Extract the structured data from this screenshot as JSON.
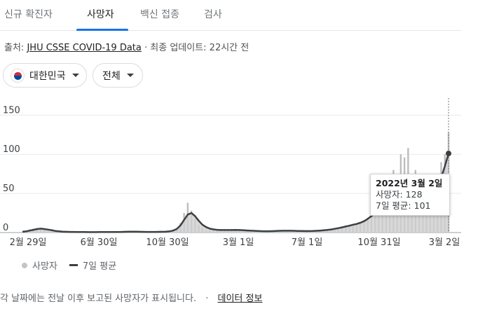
{
  "tabs": [
    {
      "label": "신규 확진자"
    },
    {
      "label": "사망자"
    },
    {
      "label": "백신 접종"
    },
    {
      "label": "검사"
    }
  ],
  "source": {
    "prefix": "출처:",
    "link": "JHU CSSE COVID-19 Data",
    "updated": "· 최종 업데이트: 22시간 전"
  },
  "filters": {
    "country": "대한민국",
    "region": "전체"
  },
  "tooltip": {
    "date": "2022년 3월 2일",
    "deaths": "사망자: 128",
    "avg": "7일 평균: 101"
  },
  "legend": {
    "bars": "사망자",
    "line": "7일 평균"
  },
  "footer": {
    "note": "각 날짜에는 전날 이후 보고된 사망자가 표시됩니다.",
    "sep": "·",
    "link": "데이터 정보"
  },
  "colors": {
    "accent": "#1a73e8",
    "bars": "#bdbdbd",
    "line": "#3c4043"
  },
  "chart_data": {
    "type": "bar",
    "title": "",
    "xlabel": "",
    "ylabel": "",
    "ylim": [
      0,
      170
    ],
    "yticks": [
      0,
      50,
      100,
      150
    ],
    "xticks": [
      "2월 29일",
      "6월 30일",
      "10월 30일",
      "3월 1일",
      "7월 1일",
      "10월 31일",
      "3월 2일"
    ],
    "series": [
      {
        "name": "사망자",
        "kind": "bar",
        "values": [
          0,
          2,
          4,
          5,
          6,
          5,
          4,
          3,
          2,
          1,
          1,
          1,
          0,
          1,
          1,
          0,
          0,
          1,
          0,
          0,
          1,
          0,
          1,
          1,
          0,
          0,
          1,
          1,
          2,
          1,
          1,
          1,
          0,
          1,
          0,
          1,
          0,
          1,
          1,
          1,
          1,
          2,
          5,
          12,
          25,
          38,
          28,
          18,
          10,
          6,
          4,
          3,
          3,
          2,
          3,
          4,
          2,
          3,
          4,
          3,
          3,
          2,
          2,
          2,
          1,
          2,
          1,
          2,
          1,
          2,
          3,
          2,
          2,
          3,
          2,
          2,
          2,
          1,
          2,
          2,
          2,
          3,
          3,
          3,
          4,
          5,
          6,
          7,
          9,
          8,
          11,
          10,
          12,
          14,
          18,
          22,
          28,
          32,
          42,
          58,
          66,
          80,
          75,
          100,
          96,
          108,
          55,
          80,
          40,
          45,
          38,
          55,
          60,
          72,
          90,
          100,
          128
        ]
      },
      {
        "name": "7일 평균",
        "kind": "line",
        "values": [
          1,
          1.5,
          2.5,
          3.5,
          4.5,
          5,
          4.5,
          3.8,
          3,
          2,
          1.5,
          1.2,
          1,
          0.8,
          0.8,
          0.6,
          0.6,
          0.6,
          0.5,
          0.5,
          0.5,
          0.6,
          0.6,
          0.6,
          0.6,
          0.6,
          0.7,
          0.8,
          1,
          1.1,
          1.2,
          1.1,
          1,
          0.9,
          0.8,
          0.8,
          0.8,
          0.9,
          1,
          1.2,
          1.5,
          2.5,
          4.5,
          9,
          16,
          23,
          25,
          21,
          15,
          10,
          7,
          5,
          4,
          3.5,
          3.2,
          3.2,
          3.2,
          3.2,
          3.3,
          3.2,
          3,
          2.7,
          2.4,
          2.2,
          2,
          1.8,
          1.7,
          1.7,
          1.8,
          2,
          2.2,
          2.3,
          2.3,
          2.3,
          2.2,
          2.1,
          2,
          1.9,
          1.9,
          2,
          2.2,
          2.5,
          2.9,
          3.3,
          3.9,
          4.7,
          5.6,
          6.6,
          7.7,
          8.8,
          10,
          11,
          12.5,
          14.5,
          17.5,
          21,
          25,
          29,
          35,
          42,
          49,
          56,
          61,
          66,
          68,
          66,
          62,
          58,
          52,
          48,
          45,
          46,
          50,
          58,
          70,
          85,
          101
        ]
      }
    ],
    "highlight_index": 116
  }
}
